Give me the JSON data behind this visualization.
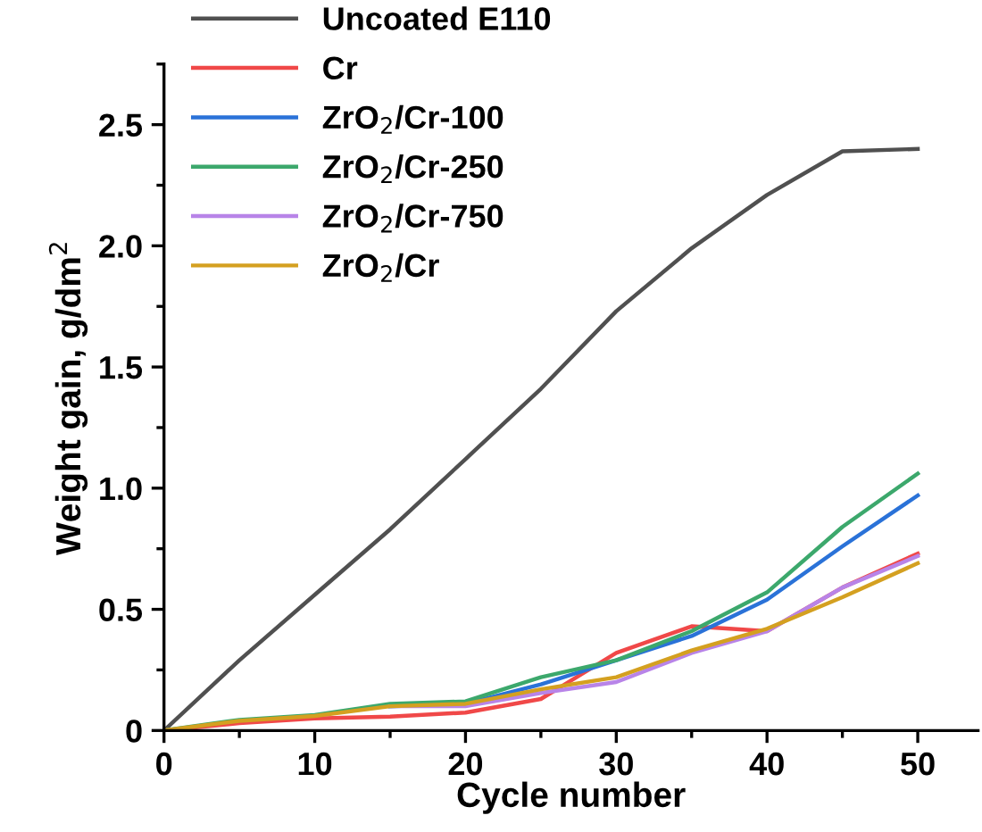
{
  "chart_data": {
    "type": "line",
    "xlabel": "Cycle number",
    "ylabel": "Weight gain, g/dm$^{2}$",
    "x": [
      0,
      5,
      10,
      15,
      20,
      25,
      30,
      35,
      40,
      45,
      50
    ],
    "series": [
      {
        "name": "Uncoated E110",
        "color": "#505050",
        "values": [
          0,
          0.29,
          0.56,
          0.83,
          1.12,
          1.41,
          1.73,
          1.99,
          2.21,
          2.39,
          2.4
        ]
      },
      {
        "name": "Cr",
        "color": "#f04848",
        "values": [
          0,
          0.03,
          0.05,
          0.057,
          0.074,
          0.13,
          0.32,
          0.43,
          0.41,
          0.59,
          0.73
        ]
      },
      {
        "name": "ZrO$_{2}$/Cr-100",
        "color": "#2a72d8",
        "values": [
          null,
          null,
          null,
          0.1,
          0.11,
          0.19,
          0.29,
          0.39,
          0.54,
          0.76,
          0.97
        ]
      },
      {
        "name": "ZrO$_{2}$/Cr-250",
        "color": "#3ca86c",
        "values": [
          0,
          0.044,
          0.064,
          0.11,
          0.12,
          0.22,
          0.29,
          0.41,
          0.57,
          0.84,
          1.06
        ]
      },
      {
        "name": "ZrO$_{2}$/Cr-750",
        "color": "#b884e8",
        "values": [
          null,
          null,
          null,
          0.1,
          0.1,
          0.155,
          0.2,
          0.32,
          0.41,
          0.59,
          0.72
        ]
      },
      {
        "name": "ZrO$_{2}$/Cr",
        "color": "#d4a020",
        "values": [
          0,
          0.04,
          0.06,
          0.1,
          0.11,
          0.17,
          0.22,
          0.33,
          0.42,
          0.55,
          0.69
        ]
      }
    ],
    "xlim": [
      0,
      54
    ],
    "xticks": [
      0,
      10,
      20,
      30,
      40,
      50
    ],
    "ylim": [
      0,
      2.75
    ],
    "yticks": [
      {
        "value": 0,
        "label": "0"
      },
      0.5,
      {
        "value": 1,
        "label": "1.0"
      },
      1.5,
      {
        "value": 2,
        "label": "2.0"
      },
      2.5
    ],
    "legend": "top left",
    "grid": false,
    "marker": "none",
    "line_style": "solid"
  }
}
